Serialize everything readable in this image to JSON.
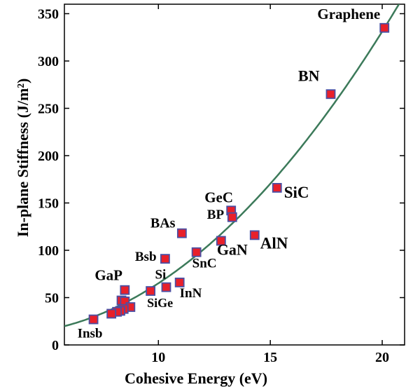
{
  "chart_data": {
    "type": "scatter",
    "xlabel": "Cohesive Energy (eV)",
    "ylabel": "In-plane Stiffness (J/m²)",
    "xlim": [
      5.8,
      21.0
    ],
    "ylim": [
      0,
      360
    ],
    "xticks": [
      10,
      15,
      20
    ],
    "xtick_labels": [
      "10",
      "15",
      "20"
    ],
    "yticks": [
      0,
      50,
      100,
      150,
      200,
      250,
      300,
      350
    ],
    "ytick_labels": [
      "0",
      "50",
      "100",
      "150",
      "200",
      "250",
      "300",
      "350"
    ],
    "grid": false,
    "legend": "none",
    "marker_fill": "#e8202a",
    "marker_edge": "#4b4fa3",
    "curve_color": "#3c7a5a",
    "points": [
      {
        "label": "Graphene",
        "x": 20.1,
        "y": 335
      },
      {
        "label": "BN",
        "x": 17.7,
        "y": 265
      },
      {
        "label": "SiC",
        "x": 15.3,
        "y": 166
      },
      {
        "label": "GeC",
        "x": 13.25,
        "y": 142
      },
      {
        "label": "BP",
        "x": 13.3,
        "y": 135
      },
      {
        "label": "AlN",
        "x": 14.3,
        "y": 116
      },
      {
        "label": "BAs",
        "x": 11.05,
        "y": 118
      },
      {
        "label": "GaN",
        "x": 12.8,
        "y": 110
      },
      {
        "label": "SnC",
        "x": 11.7,
        "y": 98
      },
      {
        "label": "Bsb",
        "x": 10.3,
        "y": 91
      },
      {
        "label": "InN",
        "x": 10.95,
        "y": 66
      },
      {
        "label": "Si",
        "x": 10.35,
        "y": 61
      },
      {
        "label": "SiGe",
        "x": 9.65,
        "y": 57
      },
      {
        "label": "GaP",
        "x": 8.5,
        "y": 58
      },
      {
        "label": "",
        "x": 8.35,
        "y": 47
      },
      {
        "label": "",
        "x": 8.5,
        "y": 46
      },
      {
        "label": "",
        "x": 8.75,
        "y": 40
      },
      {
        "label": "",
        "x": 8.45,
        "y": 38
      },
      {
        "label": "",
        "x": 8.3,
        "y": 36
      },
      {
        "label": "",
        "x": 8.15,
        "y": 35
      },
      {
        "label": "",
        "x": 7.9,
        "y": 33
      },
      {
        "label": "Insb",
        "x": 7.1,
        "y": 27
      }
    ]
  }
}
